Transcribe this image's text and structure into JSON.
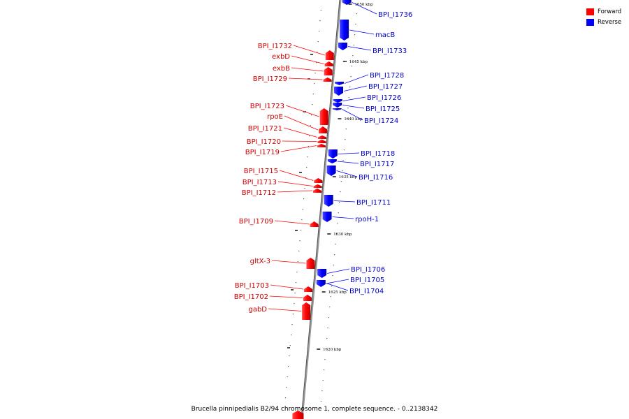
{
  "caption": "Brucella pinnipedialis B2/94 chromosome 1, complete sequence. - 0..2138342",
  "legend": [
    {
      "label": "Forward",
      "color": "#ff0000"
    },
    {
      "label": "Reverse",
      "color": "#0000ff"
    }
  ],
  "colors": {
    "forward": "#ff0000",
    "reverse": "#0000ff",
    "backbone": "#888888"
  },
  "scale_ticks": [
    "1650 kbp",
    "1645 kbp",
    "1640 kbp",
    "1635 kbp",
    "1630 kbp",
    "1625 kbp",
    "1620 kbp"
  ],
  "genes": {
    "forward": [
      "BPI_I1732",
      "exbD",
      "exbB",
      "BPI_I1729",
      "BPI_I1723",
      "rpoE",
      "BPI_I1721",
      "BPI_I1720",
      "BPI_I1719",
      "BPI_I1715",
      "BPI_I1713",
      "BPI_I1712",
      "BPI_I1709",
      "gltX-3",
      "BPI_I1703",
      "BPI_I1702",
      "gabD"
    ],
    "reverse": [
      "BPI_I1736",
      "macB",
      "BPI_I1733",
      "BPI_I1728",
      "BPI_I1727",
      "BPI_I1726",
      "BPI_I1725",
      "BPI_I1724",
      "BPI_I1718",
      "BPI_I1717",
      "BPI_I1716",
      "BPI_I1711",
      "rpoH-1",
      "BPI_I1706",
      "BPI_I1705",
      "BPI_I1704"
    ]
  }
}
